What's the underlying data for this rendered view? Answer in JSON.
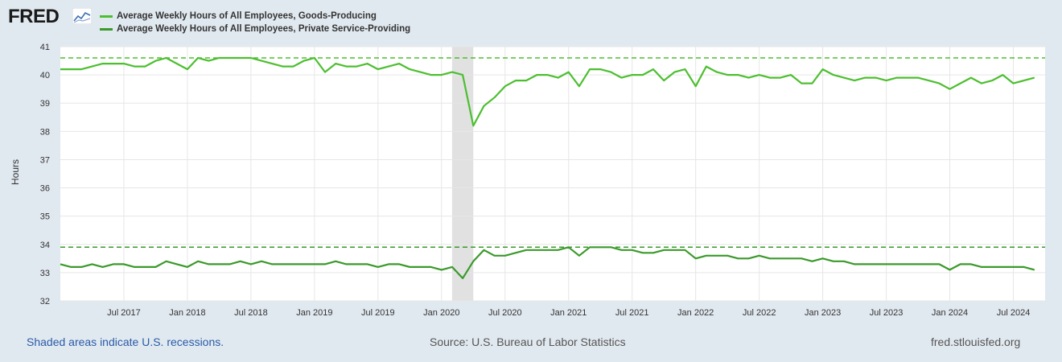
{
  "header": {
    "logo_text": "FRED",
    "logo_icon": "chart-line-icon"
  },
  "legend": [
    {
      "label": "Average Weekly Hours of All Employees, Goods-Producing",
      "color": "#4cbf2f"
    },
    {
      "label": "Average Weekly Hours of All Employees, Private Service-Providing",
      "color": "#3a9a2a"
    }
  ],
  "footer": {
    "recession_note": "Shaded areas indicate U.S. recessions.",
    "source": "Source: U.S. Bureau of Labor Statistics",
    "site": "fred.stlouisfed.org"
  },
  "chart_data": {
    "type": "line",
    "ylabel": "Hours",
    "ylim": [
      32,
      41
    ],
    "y_ticks": [
      32,
      33,
      34,
      35,
      36,
      37,
      38,
      39,
      40,
      41
    ],
    "x_range": [
      2017.0,
      2024.75
    ],
    "x_ticks": [
      {
        "label": "Jul 2017",
        "x": 2017.5
      },
      {
        "label": "Jan 2018",
        "x": 2018.0
      },
      {
        "label": "Jul 2018",
        "x": 2018.5
      },
      {
        "label": "Jan 2019",
        "x": 2019.0
      },
      {
        "label": "Jul 2019",
        "x": 2019.5
      },
      {
        "label": "Jan 2020",
        "x": 2020.0
      },
      {
        "label": "Jul 2020",
        "x": 2020.5
      },
      {
        "label": "Jan 2021",
        "x": 2021.0
      },
      {
        "label": "Jul 2021",
        "x": 2021.5
      },
      {
        "label": "Jan 2022",
        "x": 2022.0
      },
      {
        "label": "Jul 2022",
        "x": 2022.5
      },
      {
        "label": "Jan 2023",
        "x": 2023.0
      },
      {
        "label": "Jul 2023",
        "x": 2023.5
      },
      {
        "label": "Jan 2024",
        "x": 2024.0
      },
      {
        "label": "Jul 2024",
        "x": 2024.5
      }
    ],
    "recession": [
      2020.083,
      2020.25
    ],
    "reference_lines": [
      {
        "value": 40.6,
        "color": "#4cbf2f"
      },
      {
        "value": 33.9,
        "color": "#3a9a2a"
      }
    ],
    "series": [
      {
        "name": "Average Weekly Hours of All Employees, Goods-Producing",
        "color": "#4cbf2f",
        "start": 2017.0,
        "step_months": 1,
        "values": [
          40.2,
          40.2,
          40.2,
          40.3,
          40.4,
          40.4,
          40.4,
          40.3,
          40.3,
          40.5,
          40.6,
          40.4,
          40.2,
          40.6,
          40.5,
          40.6,
          40.6,
          40.6,
          40.6,
          40.5,
          40.4,
          40.3,
          40.3,
          40.5,
          40.6,
          40.1,
          40.4,
          40.3,
          40.3,
          40.4,
          40.2,
          40.3,
          40.4,
          40.2,
          40.1,
          40.0,
          40.0,
          40.1,
          40.0,
          38.2,
          38.9,
          39.2,
          39.6,
          39.8,
          39.8,
          40.0,
          40.0,
          39.9,
          40.1,
          39.6,
          40.2,
          40.2,
          40.1,
          39.9,
          40.0,
          40.0,
          40.2,
          39.8,
          40.1,
          40.2,
          39.6,
          40.3,
          40.1,
          40.0,
          40.0,
          39.9,
          40.0,
          39.9,
          39.9,
          40.0,
          39.7,
          39.7,
          40.2,
          40.0,
          39.9,
          39.8,
          39.9,
          39.9,
          39.8,
          39.9,
          39.9,
          39.9,
          39.8,
          39.7,
          39.5,
          39.7,
          39.9,
          39.7,
          39.8,
          40.0,
          39.7,
          39.8,
          39.9
        ]
      },
      {
        "name": "Average Weekly Hours of All Employees, Private Service-Providing",
        "color": "#3a9a2a",
        "start": 2017.0,
        "step_months": 1,
        "values": [
          33.3,
          33.2,
          33.2,
          33.3,
          33.2,
          33.3,
          33.3,
          33.2,
          33.2,
          33.2,
          33.4,
          33.3,
          33.2,
          33.4,
          33.3,
          33.3,
          33.3,
          33.4,
          33.3,
          33.4,
          33.3,
          33.3,
          33.3,
          33.3,
          33.3,
          33.3,
          33.4,
          33.3,
          33.3,
          33.3,
          33.2,
          33.3,
          33.3,
          33.2,
          33.2,
          33.2,
          33.1,
          33.2,
          32.8,
          33.4,
          33.8,
          33.6,
          33.6,
          33.7,
          33.8,
          33.8,
          33.8,
          33.8,
          33.9,
          33.6,
          33.9,
          33.9,
          33.9,
          33.8,
          33.8,
          33.7,
          33.7,
          33.8,
          33.8,
          33.8,
          33.5,
          33.6,
          33.6,
          33.6,
          33.5,
          33.5,
          33.6,
          33.5,
          33.5,
          33.5,
          33.5,
          33.4,
          33.5,
          33.4,
          33.4,
          33.3,
          33.3,
          33.3,
          33.3,
          33.3,
          33.3,
          33.3,
          33.3,
          33.3,
          33.1,
          33.3,
          33.3,
          33.2,
          33.2,
          33.2,
          33.2,
          33.2,
          33.1
        ]
      }
    ]
  }
}
